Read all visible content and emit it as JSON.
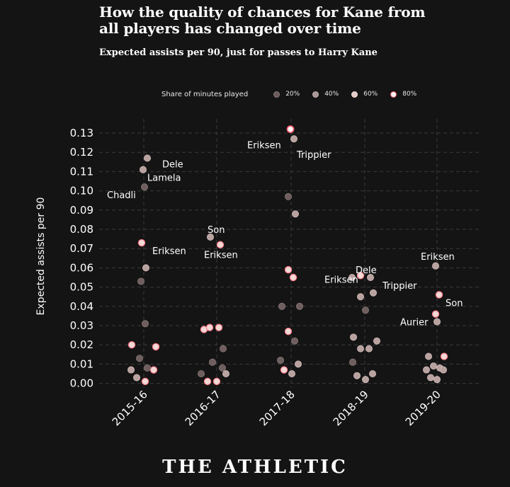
{
  "header": {
    "title_line1": "How the quality of chances for Kane from",
    "title_line2": "all players has changed over time",
    "subtitle": "Expected assists per 90, just for passes to Harry Kane"
  },
  "legend": {
    "title": "Share of minutes played",
    "items": [
      {
        "label": "20%",
        "color": "#6a5a5a"
      },
      {
        "label": "40%",
        "color": "#a99595"
      },
      {
        "label": "60%",
        "color": "#e3cbc8"
      },
      {
        "label": "80%",
        "color": "#ffeeee"
      }
    ]
  },
  "brand": {
    "logo": "THE ATHLETIC"
  },
  "chart_data": {
    "type": "scatter",
    "title": "How the quality of chances for Kane from all players has changed over time",
    "subtitle": "Expected assists per 90, just for passes to Harry Kane",
    "xlabel": "",
    "ylabel": "Expected assists per 90",
    "ylim": [
      -0.002,
      0.133
    ],
    "yticks": [
      "0.00",
      "0.01",
      "0.02",
      "0.03",
      "0.04",
      "0.05",
      "0.06",
      "0.07",
      "0.08",
      "0.09",
      "0.10",
      "0.11",
      "0.12",
      "0.13"
    ],
    "ytick_values": [
      0,
      0.01,
      0.02,
      0.03,
      0.04,
      0.05,
      0.06,
      0.07,
      0.08,
      0.09,
      0.1,
      0.11,
      0.12,
      0.13
    ],
    "categories": [
      "2015-16",
      "2016-17",
      "2017-18",
      "2018-19",
      "2019-20"
    ],
    "grid": true,
    "legend_position": "top",
    "points": [
      {
        "season": "2015-16",
        "jitter": 0.05,
        "y": 0.117,
        "share": 0.4
      },
      {
        "season": "2015-16",
        "jitter": -0.01,
        "y": 0.111,
        "share": 0.4
      },
      {
        "season": "2015-16",
        "jitter": 0.01,
        "y": 0.102,
        "share": 0.2
      },
      {
        "season": "2015-16",
        "jitter": -0.03,
        "y": 0.073,
        "share": 0.6
      },
      {
        "season": "2015-16",
        "jitter": 0.03,
        "y": 0.06,
        "share": 0.4
      },
      {
        "season": "2015-16",
        "jitter": -0.04,
        "y": 0.053,
        "share": 0.2
      },
      {
        "season": "2015-16",
        "jitter": 0.02,
        "y": 0.031,
        "share": 0.2
      },
      {
        "season": "2015-16",
        "jitter": -0.17,
        "y": 0.02,
        "share": 0.6
      },
      {
        "season": "2015-16",
        "jitter": 0.17,
        "y": 0.019,
        "share": 0.6
      },
      {
        "season": "2015-16",
        "jitter": -0.06,
        "y": 0.013,
        "share": 0.2
      },
      {
        "season": "2015-16",
        "jitter": -0.18,
        "y": 0.007,
        "share": 0.4
      },
      {
        "season": "2015-16",
        "jitter": 0.14,
        "y": 0.007,
        "share": 0.6
      },
      {
        "season": "2015-16",
        "jitter": 0.05,
        "y": 0.008,
        "share": 0.2
      },
      {
        "season": "2015-16",
        "jitter": -0.1,
        "y": 0.003,
        "share": 0.4
      },
      {
        "season": "2015-16",
        "jitter": 0.02,
        "y": 0.001,
        "share": 0.6
      },
      {
        "season": "2016-17",
        "jitter": -0.09,
        "y": 0.076,
        "share": 0.4
      },
      {
        "season": "2016-17",
        "jitter": 0.05,
        "y": 0.072,
        "share": 0.6
      },
      {
        "season": "2016-17",
        "jitter": -0.18,
        "y": 0.028,
        "share": 0.6
      },
      {
        "season": "2016-17",
        "jitter": -0.1,
        "y": 0.029,
        "share": 0.6
      },
      {
        "season": "2016-17",
        "jitter": 0.03,
        "y": 0.029,
        "share": 0.6
      },
      {
        "season": "2016-17",
        "jitter": 0.09,
        "y": 0.018,
        "share": 0.2
      },
      {
        "season": "2016-17",
        "jitter": -0.06,
        "y": 0.011,
        "share": 0.2
      },
      {
        "season": "2016-17",
        "jitter": -0.22,
        "y": 0.005,
        "share": 0.2
      },
      {
        "season": "2016-17",
        "jitter": 0.13,
        "y": 0.005,
        "share": 0.4
      },
      {
        "season": "2016-17",
        "jitter": 0.08,
        "y": 0.008,
        "share": 0.2
      },
      {
        "season": "2016-17",
        "jitter": -0.13,
        "y": 0.001,
        "share": 0.6
      },
      {
        "season": "2016-17",
        "jitter": 0.0,
        "y": 0.001,
        "share": 0.6
      },
      {
        "season": "2017-18",
        "jitter": -0.01,
        "y": 0.132,
        "share": 0.8
      },
      {
        "season": "2017-18",
        "jitter": 0.04,
        "y": 0.127,
        "share": 0.4
      },
      {
        "season": "2017-18",
        "jitter": -0.04,
        "y": 0.097,
        "share": 0.2
      },
      {
        "season": "2017-18",
        "jitter": 0.06,
        "y": 0.088,
        "share": 0.4
      },
      {
        "season": "2017-18",
        "jitter": -0.04,
        "y": 0.059,
        "share": 0.6
      },
      {
        "season": "2017-18",
        "jitter": 0.03,
        "y": 0.055,
        "share": 0.6
      },
      {
        "season": "2017-18",
        "jitter": -0.13,
        "y": 0.04,
        "share": 0.2
      },
      {
        "season": "2017-18",
        "jitter": 0.12,
        "y": 0.04,
        "share": 0.2
      },
      {
        "season": "2017-18",
        "jitter": -0.04,
        "y": 0.027,
        "share": 0.6
      },
      {
        "season": "2017-18",
        "jitter": 0.05,
        "y": 0.022,
        "share": 0.2
      },
      {
        "season": "2017-18",
        "jitter": -0.15,
        "y": 0.012,
        "share": 0.2
      },
      {
        "season": "2017-18",
        "jitter": 0.1,
        "y": 0.01,
        "share": 0.4
      },
      {
        "season": "2017-18",
        "jitter": -0.1,
        "y": 0.007,
        "share": 0.6
      },
      {
        "season": "2017-18",
        "jitter": 0.01,
        "y": 0.005,
        "share": 0.4
      },
      {
        "season": "2018-19",
        "jitter": -0.18,
        "y": 0.055,
        "share": 0.4
      },
      {
        "season": "2018-19",
        "jitter": -0.06,
        "y": 0.056,
        "share": 0.6
      },
      {
        "season": "2018-19",
        "jitter": 0.08,
        "y": 0.055,
        "share": 0.4
      },
      {
        "season": "2018-19",
        "jitter": -0.06,
        "y": 0.045,
        "share": 0.4
      },
      {
        "season": "2018-19",
        "jitter": 0.12,
        "y": 0.047,
        "share": 0.4
      },
      {
        "season": "2018-19",
        "jitter": 0.01,
        "y": 0.038,
        "share": 0.2
      },
      {
        "season": "2018-19",
        "jitter": -0.16,
        "y": 0.024,
        "share": 0.4
      },
      {
        "season": "2018-19",
        "jitter": 0.17,
        "y": 0.022,
        "share": 0.4
      },
      {
        "season": "2018-19",
        "jitter": -0.06,
        "y": 0.018,
        "share": 0.4
      },
      {
        "season": "2018-19",
        "jitter": 0.06,
        "y": 0.018,
        "share": 0.4
      },
      {
        "season": "2018-19",
        "jitter": -0.17,
        "y": 0.011,
        "share": 0.2
      },
      {
        "season": "2018-19",
        "jitter": -0.11,
        "y": 0.004,
        "share": 0.4
      },
      {
        "season": "2018-19",
        "jitter": 0.11,
        "y": 0.005,
        "share": 0.4
      },
      {
        "season": "2018-19",
        "jitter": 0.01,
        "y": 0.002,
        "share": 0.4
      },
      {
        "season": "2019-20",
        "jitter": -0.02,
        "y": 0.061,
        "share": 0.4
      },
      {
        "season": "2019-20",
        "jitter": 0.03,
        "y": 0.046,
        "share": 0.6
      },
      {
        "season": "2019-20",
        "jitter": -0.02,
        "y": 0.036,
        "share": 0.6
      },
      {
        "season": "2019-20",
        "jitter": 0.0,
        "y": 0.032,
        "share": 0.4
      },
      {
        "season": "2019-20",
        "jitter": -0.12,
        "y": 0.014,
        "share": 0.4
      },
      {
        "season": "2019-20",
        "jitter": 0.1,
        "y": 0.014,
        "share": 0.6
      },
      {
        "season": "2019-20",
        "jitter": -0.05,
        "y": 0.009,
        "share": 0.4
      },
      {
        "season": "2019-20",
        "jitter": -0.15,
        "y": 0.007,
        "share": 0.4
      },
      {
        "season": "2019-20",
        "jitter": 0.04,
        "y": 0.008,
        "share": 0.4
      },
      {
        "season": "2019-20",
        "jitter": 0.09,
        "y": 0.007,
        "share": 0.4
      },
      {
        "season": "2019-20",
        "jitter": -0.09,
        "y": 0.003,
        "share": 0.4
      },
      {
        "season": "2019-20",
        "jitter": 0.0,
        "y": 0.002,
        "share": 0.4
      }
    ],
    "annotations": [
      {
        "text": "Dele",
        "season": "2015-16",
        "jitter": 0.26,
        "y": 0.114,
        "anchor": "start"
      },
      {
        "text": "Lamela",
        "season": "2015-16",
        "jitter": 0.05,
        "y": 0.107,
        "anchor": "start"
      },
      {
        "text": "Chadli",
        "season": "2015-16",
        "jitter": -0.52,
        "y": 0.098,
        "anchor": "start"
      },
      {
        "text": "Eriksen",
        "season": "2015-16",
        "jitter": 0.12,
        "y": 0.069,
        "anchor": "start"
      },
      {
        "text": "Son",
        "season": "2016-17",
        "jitter": -0.13,
        "y": 0.08,
        "anchor": "start"
      },
      {
        "text": "Eriksen",
        "season": "2016-17",
        "jitter": -0.18,
        "y": 0.067,
        "anchor": "start"
      },
      {
        "text": "Eriksen",
        "season": "2017-18",
        "jitter": -0.62,
        "y": 0.124,
        "anchor": "start"
      },
      {
        "text": "Trippier",
        "season": "2017-18",
        "jitter": 0.08,
        "y": 0.119,
        "anchor": "start"
      },
      {
        "text": "Dele",
        "season": "2018-19",
        "jitter": -0.13,
        "y": 0.059,
        "anchor": "start"
      },
      {
        "text": "Eriksen",
        "season": "2018-19",
        "jitter": -0.57,
        "y": 0.054,
        "anchor": "start"
      },
      {
        "text": "Trippier",
        "season": "2018-19",
        "jitter": 0.25,
        "y": 0.051,
        "anchor": "start"
      },
      {
        "text": "Eriksen",
        "season": "2019-20",
        "jitter": -0.23,
        "y": 0.066,
        "anchor": "start"
      },
      {
        "text": "Son",
        "season": "2019-20",
        "jitter": 0.12,
        "y": 0.042,
        "anchor": "start"
      },
      {
        "text": "Aurier",
        "season": "2019-20",
        "jitter": -0.52,
        "y": 0.032,
        "anchor": "start"
      }
    ]
  }
}
